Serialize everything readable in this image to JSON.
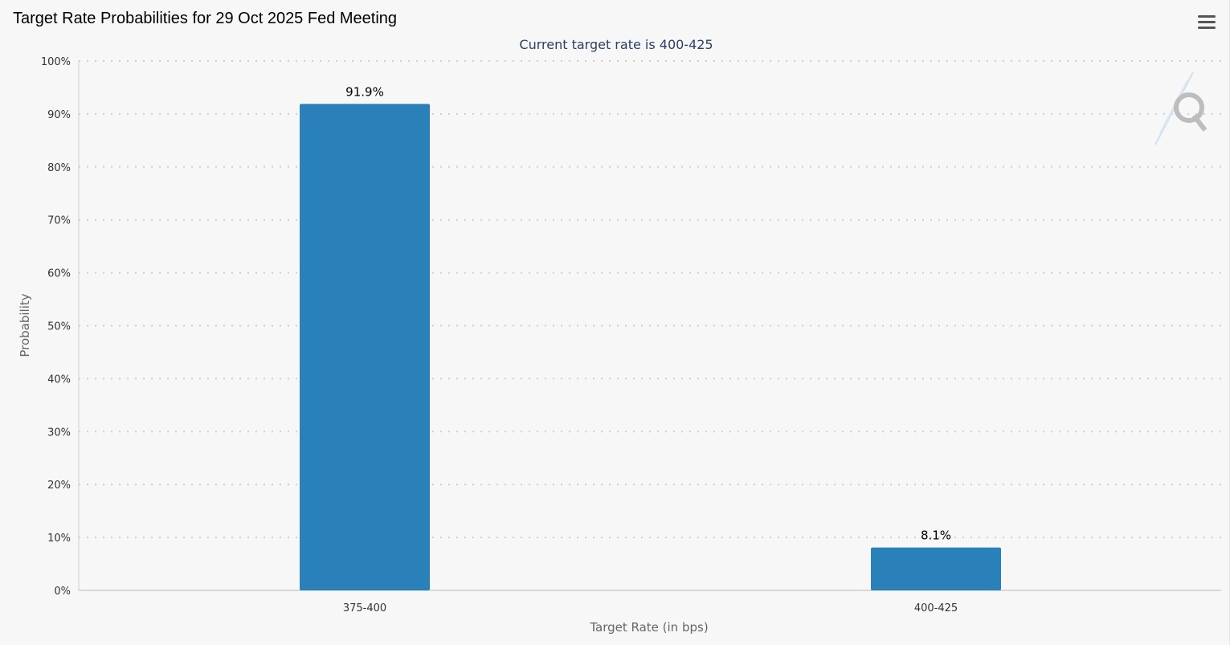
{
  "header": {
    "title": "Target Rate Probabilities for 29 Oct 2025 Fed Meeting"
  },
  "chart_data": {
    "type": "bar",
    "title": "Target Rate Probabilities for 29 Oct 2025 Fed Meeting",
    "subtitle": "Current target rate is 400-425",
    "xlabel": "Target Rate (in bps)",
    "ylabel": "Probability",
    "categories": [
      "375-400",
      "400-425"
    ],
    "values": [
      91.9,
      8.1
    ],
    "data_labels": [
      "91.9%",
      "8.1%"
    ],
    "ylim": [
      0,
      100
    ],
    "yticks": [
      0,
      10,
      20,
      30,
      40,
      50,
      60,
      70,
      80,
      90,
      100
    ],
    "ytick_labels": [
      "0%",
      "10%",
      "20%",
      "30%",
      "40%",
      "50%",
      "60%",
      "70%",
      "80%",
      "90%",
      "100%"
    ],
    "grid": true,
    "legend": "none",
    "bar_color": "#2a80b9"
  }
}
